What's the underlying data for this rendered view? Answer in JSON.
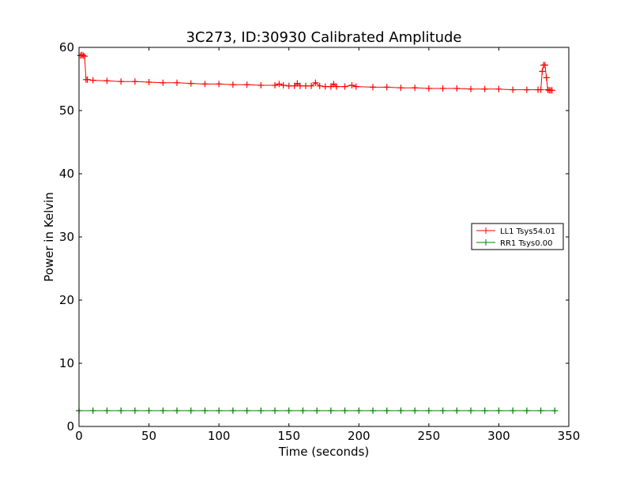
{
  "chart_data": {
    "type": "line",
    "title": "3C273, ID:30930 Calibrated Amplitude",
    "xlabel": "Time (seconds)",
    "ylabel": "Power in Kelvin",
    "xlim": [
      0,
      350
    ],
    "ylim": [
      0,
      60
    ],
    "xticks": [
      0,
      50,
      100,
      150,
      200,
      250,
      300,
      350
    ],
    "yticks": [
      0,
      10,
      20,
      30,
      40,
      50,
      60
    ],
    "grid": false,
    "legend_position": "right",
    "series": [
      {
        "name": "LL1 Tsys54.01",
        "color": "#ff0000",
        "marker": "plus",
        "x": [
          1,
          2,
          3,
          4,
          5,
          6,
          10,
          20,
          30,
          40,
          50,
          60,
          70,
          80,
          90,
          100,
          110,
          120,
          130,
          140,
          143,
          146,
          150,
          154,
          156,
          158,
          162,
          166,
          169,
          172,
          176,
          180,
          182,
          184,
          190,
          195,
          198,
          210,
          220,
          230,
          240,
          250,
          260,
          270,
          280,
          290,
          300,
          310,
          320,
          328,
          330,
          331,
          332,
          333,
          334,
          335,
          336,
          337,
          338
        ],
        "y": [
          58.7,
          58.8,
          58.7,
          58.6,
          54.9,
          54.9,
          54.8,
          54.7,
          54.6,
          54.6,
          54.5,
          54.4,
          54.4,
          54.3,
          54.2,
          54.2,
          54.1,
          54.1,
          54.0,
          54.0,
          54.2,
          54.0,
          53.9,
          53.9,
          54.3,
          53.9,
          53.9,
          53.9,
          54.4,
          53.9,
          53.8,
          53.8,
          54.2,
          53.8,
          53.8,
          54.0,
          53.8,
          53.7,
          53.7,
          53.6,
          53.6,
          53.5,
          53.5,
          53.5,
          53.4,
          53.4,
          53.4,
          53.3,
          53.3,
          53.3,
          53.3,
          56.2,
          57.2,
          57.2,
          55.2,
          53.3,
          53.2,
          53.2,
          53.2
        ]
      },
      {
        "name": "RR1 Tsys0.00",
        "color": "#008000",
        "marker": "plus",
        "x": [
          0,
          10,
          20,
          30,
          40,
          50,
          60,
          70,
          80,
          90,
          100,
          110,
          120,
          130,
          140,
          150,
          160,
          170,
          180,
          190,
          200,
          210,
          220,
          230,
          240,
          250,
          260,
          270,
          280,
          290,
          300,
          310,
          320,
          330,
          340
        ],
        "y": [
          2.5,
          2.5,
          2.5,
          2.5,
          2.5,
          2.5,
          2.5,
          2.5,
          2.5,
          2.5,
          2.5,
          2.5,
          2.5,
          2.5,
          2.5,
          2.5,
          2.5,
          2.5,
          2.5,
          2.5,
          2.5,
          2.5,
          2.5,
          2.5,
          2.5,
          2.5,
          2.5,
          2.5,
          2.5,
          2.5,
          2.5,
          2.5,
          2.5,
          2.5,
          2.5
        ]
      }
    ]
  }
}
